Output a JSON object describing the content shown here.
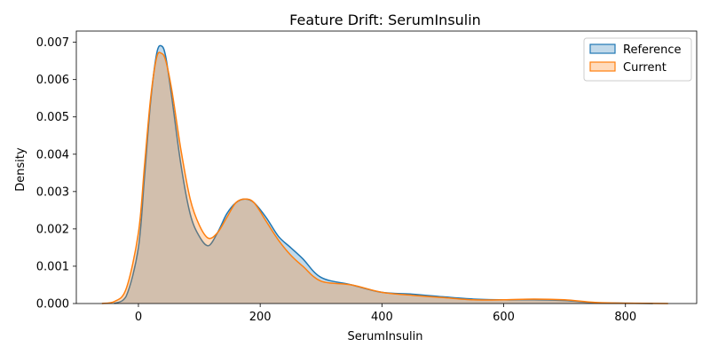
{
  "chart_data": {
    "type": "area",
    "title": "Feature Drift: SerumInsulin",
    "xlabel": "SerumInsulin",
    "ylabel": "Density",
    "xlim": [
      -102,
      917
    ],
    "ylim": [
      0,
      0.0073
    ],
    "xticks": [
      0,
      200,
      400,
      600,
      800
    ],
    "xtick_labels": [
      "0",
      "200",
      "400",
      "600",
      "800"
    ],
    "yticks": [
      0,
      0.001,
      0.002,
      0.003,
      0.004,
      0.005,
      0.006,
      0.007
    ],
    "ytick_labels": [
      "0.000",
      "0.001",
      "0.002",
      "0.003",
      "0.004",
      "0.005",
      "0.006",
      "0.007"
    ],
    "grid": false,
    "legend_position": "top-right",
    "series": [
      {
        "name": "Reference",
        "line_color": "#1f77b4",
        "fill_color": "#1f77b4",
        "fill_opacity": 0.28,
        "x": [
          -40,
          -20,
          0,
          10,
          20,
          30,
          38,
          45,
          55,
          70,
          85,
          100,
          115,
          130,
          145,
          160,
          175,
          190,
          210,
          230,
          250,
          270,
          300,
          350,
          400,
          450,
          500,
          550,
          600,
          650,
          700,
          750,
          800,
          845
        ],
        "y": [
          0,
          0.0002,
          0.0015,
          0.0034,
          0.0054,
          0.0067,
          0.0069,
          0.0066,
          0.0055,
          0.0037,
          0.0024,
          0.0018,
          0.00155,
          0.0019,
          0.0024,
          0.0027,
          0.0028,
          0.0027,
          0.0023,
          0.0018,
          0.0015,
          0.0012,
          0.0007,
          0.0005,
          0.0003,
          0.00025,
          0.00018,
          0.00012,
          0.0001,
          0.0001,
          8e-05,
          2e-05,
          1e-05,
          0
        ]
      },
      {
        "name": "Current",
        "line_color": "#ff7f0e",
        "fill_color": "#ff7f0e",
        "fill_opacity": 0.28,
        "x": [
          -60,
          -40,
          -20,
          0,
          10,
          20,
          30,
          38,
          45,
          55,
          70,
          85,
          100,
          115,
          130,
          145,
          160,
          175,
          190,
          210,
          230,
          250,
          270,
          300,
          350,
          400,
          450,
          500,
          550,
          600,
          650,
          700,
          750,
          800,
          870
        ],
        "y": [
          0,
          5e-05,
          0.0004,
          0.0019,
          0.0037,
          0.0055,
          0.0066,
          0.0067,
          0.0065,
          0.0057,
          0.0041,
          0.0028,
          0.0021,
          0.00175,
          0.0019,
          0.0023,
          0.0027,
          0.0028,
          0.0027,
          0.0022,
          0.0017,
          0.0013,
          0.001,
          0.0006,
          0.0005,
          0.0003,
          0.00022,
          0.00016,
          0.0001,
          0.0001,
          0.00012,
          0.0001,
          3e-05,
          1e-05,
          0
        ]
      }
    ]
  }
}
